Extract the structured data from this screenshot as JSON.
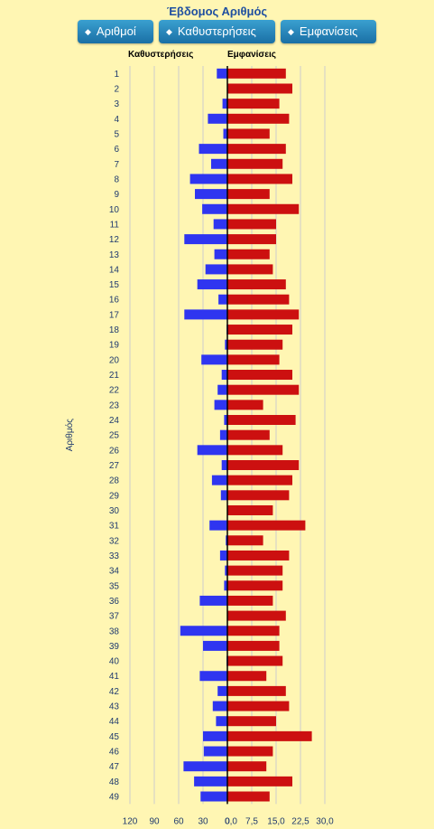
{
  "header": {
    "title": "Έβδομος Αριθμός"
  },
  "buttons": [
    {
      "label": "Αριθμοί"
    },
    {
      "label": "Καθυστερήσεις"
    },
    {
      "label": "Εμφανίσεις"
    }
  ],
  "chart_data": {
    "type": "bar",
    "orientation": "horizontal",
    "ylabel": "Αριθμός",
    "categories": [
      "1",
      "2",
      "3",
      "4",
      "5",
      "6",
      "7",
      "8",
      "9",
      "10",
      "11",
      "12",
      "13",
      "14",
      "15",
      "16",
      "17",
      "18",
      "19",
      "20",
      "21",
      "22",
      "23",
      "24",
      "25",
      "26",
      "27",
      "28",
      "29",
      "30",
      "31",
      "32",
      "33",
      "34",
      "35",
      "36",
      "37",
      "38",
      "39",
      "40",
      "41",
      "42",
      "43",
      "44",
      "45",
      "46",
      "47",
      "48",
      "49"
    ],
    "series": [
      {
        "name": "Καθυστερήσεις",
        "color": "#2f35f0",
        "xlim": [
          0,
          120
        ],
        "xticks": [
          "120",
          "90",
          "60",
          "30",
          "0"
        ],
        "values": [
          13,
          0,
          6,
          24,
          5,
          35,
          20,
          46,
          40,
          31,
          17,
          53,
          16,
          27,
          37,
          11,
          53,
          1,
          3,
          32,
          7,
          12,
          16,
          4,
          9,
          37,
          7,
          19,
          8,
          0,
          22,
          2,
          9,
          3,
          4,
          34,
          0,
          58,
          30,
          1,
          34,
          12,
          18,
          14,
          30,
          29,
          54,
          41,
          33
        ]
      },
      {
        "name": "Εμφανίσεις",
        "color": "#cc1010",
        "xlim": [
          0,
          30
        ],
        "xticks": [
          "0,0",
          "7,5",
          "15,0",
          "22,5",
          "30,0"
        ],
        "values": [
          18,
          20,
          16,
          19,
          13,
          18,
          17,
          20,
          13,
          22,
          15,
          15,
          13,
          14,
          18,
          19,
          22,
          20,
          17,
          16,
          20,
          22,
          11,
          21,
          13,
          17,
          22,
          20,
          19,
          14,
          24,
          11,
          19,
          17,
          17,
          14,
          18,
          16,
          16,
          17,
          12,
          18,
          19,
          15,
          26,
          14,
          12,
          20,
          13
        ]
      }
    ]
  }
}
